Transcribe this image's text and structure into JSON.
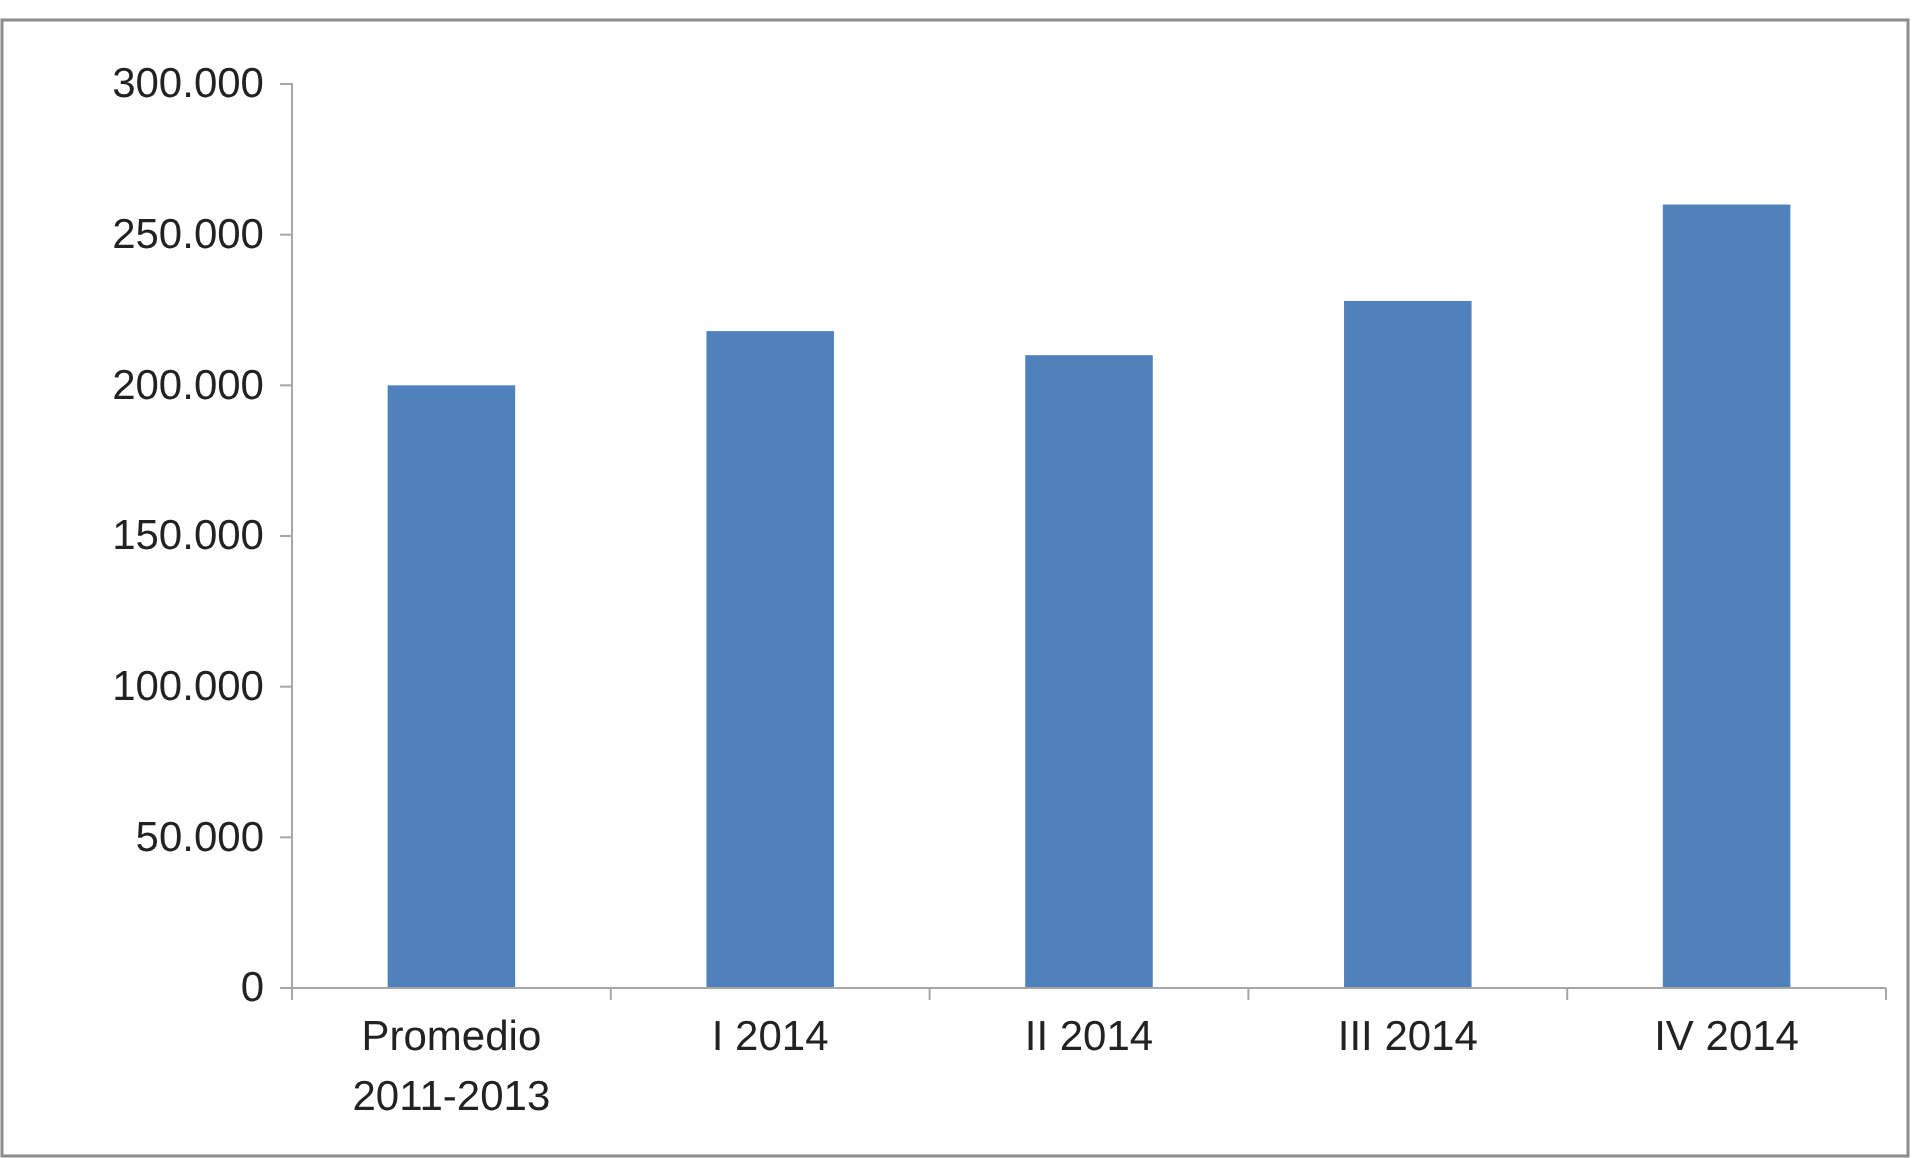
{
  "chart_data": {
    "type": "bar",
    "categories": [
      "Promedio 2011-2013",
      "I 2014",
      "II 2014",
      "III 2014",
      "IV 2014"
    ],
    "values": [
      200000,
      218000,
      210000,
      228000,
      260000
    ],
    "color": "#4f81bd",
    "ylim": [
      0,
      300000
    ],
    "yticks": [
      {
        "value": 0,
        "label": "0"
      },
      {
        "value": 50000,
        "label": "50.000"
      },
      {
        "value": 100000,
        "label": "100.000"
      },
      {
        "value": 150000,
        "label": "150.000"
      },
      {
        "value": 200000,
        "label": "200.000"
      },
      {
        "value": 250000,
        "label": "250.000"
      },
      {
        "value": 300000,
        "label": "300.000"
      }
    ],
    "grid": false
  }
}
